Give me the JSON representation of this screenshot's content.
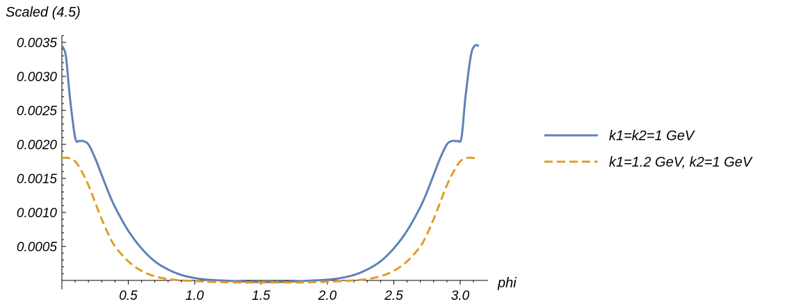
{
  "chart_data": {
    "type": "line",
    "title": "",
    "ylabel": "Scaled (4.5)",
    "xlabel": "phi",
    "xlim": [
      0,
      3.14159
    ],
    "ylim": [
      -3e-05,
      0.0036
    ],
    "x_ticks": [
      0.5,
      1.0,
      1.5,
      2.0,
      2.5,
      3.0
    ],
    "x_tick_labels": [
      "0.5",
      "1.0",
      "1.5",
      "2.0",
      "2.5",
      "3.0"
    ],
    "y_ticks": [
      0.0005,
      0.001,
      0.0015,
      0.002,
      0.0025,
      0.003,
      0.0035
    ],
    "y_tick_labels": [
      "0.0005",
      "0.0010",
      "0.0015",
      "0.0020",
      "0.0025",
      "0.0030",
      "0.0035"
    ],
    "grid": false,
    "legend_position": "right",
    "series": [
      {
        "name": "k1=k2=1 GeV",
        "color": "#5e81b5",
        "style": "solid",
        "x": [
          0,
          0.03,
          0.06,
          0.1,
          0.13,
          0.16,
          0.2,
          0.25,
          0.3,
          0.35,
          0.4,
          0.5,
          0.6,
          0.7,
          0.8,
          0.9,
          1.0,
          1.1,
          1.2,
          1.3,
          1.4,
          1.5,
          1.5708,
          1.6,
          1.7,
          1.8,
          1.9,
          2.0,
          2.1,
          2.2,
          2.3,
          2.4,
          2.5,
          2.6,
          2.7,
          2.75,
          2.8,
          2.85,
          2.9,
          2.94,
          2.98,
          3.01,
          3.04,
          3.08,
          3.11,
          3.1416
        ],
        "y": [
          0.00345,
          0.0033,
          0.0027,
          0.0021,
          0.00205,
          0.00205,
          0.002,
          0.0018,
          0.00155,
          0.0013,
          0.00108,
          0.00073,
          0.00047,
          0.00028,
          0.00016,
          8e-05,
          3.5e-05,
          1e-05,
          0.0,
          -1e-05,
          -2e-05,
          -2.5e-05,
          -2.5e-05,
          -2.5e-05,
          -2e-05,
          -1e-05,
          0.0,
          1e-05,
          3.5e-05,
          8e-05,
          0.00016,
          0.00028,
          0.00047,
          0.00073,
          0.00108,
          0.0013,
          0.00155,
          0.0018,
          0.002,
          0.00205,
          0.00205,
          0.0021,
          0.0027,
          0.0033,
          0.00345,
          0.00345
        ]
      },
      {
        "name": "k1=1.2 GeV, k2=1 GeV",
        "color": "#e19c24",
        "style": "dashed",
        "x": [
          0,
          0.05,
          0.1,
          0.15,
          0.2,
          0.25,
          0.3,
          0.35,
          0.4,
          0.5,
          0.6,
          0.7,
          0.8,
          0.9,
          1.0,
          1.1,
          1.2,
          1.3,
          1.4,
          1.5,
          1.5708,
          1.6,
          1.7,
          1.8,
          1.9,
          2.0,
          2.1,
          2.2,
          2.3,
          2.4,
          2.5,
          2.6,
          2.7,
          2.75,
          2.8,
          2.85,
          2.9,
          2.95,
          3.0,
          3.05,
          3.1,
          3.1416
        ],
        "y": [
          0.0018,
          0.0018,
          0.00175,
          0.0016,
          0.0014,
          0.00115,
          0.0009,
          0.00068,
          0.0005,
          0.00028,
          0.00014,
          6e-05,
          2e-05,
          0.0,
          -1e-05,
          -2e-05,
          -2.5e-05,
          -3e-05,
          -3e-05,
          -3e-05,
          -3e-05,
          -3e-05,
          -3e-05,
          -3e-05,
          -2.5e-05,
          -2e-05,
          -1e-05,
          0.0,
          2e-05,
          6e-05,
          0.00014,
          0.00028,
          0.0005,
          0.00068,
          0.0009,
          0.00115,
          0.0014,
          0.0016,
          0.00175,
          0.0018,
          0.0018,
          0.0018
        ]
      }
    ]
  }
}
